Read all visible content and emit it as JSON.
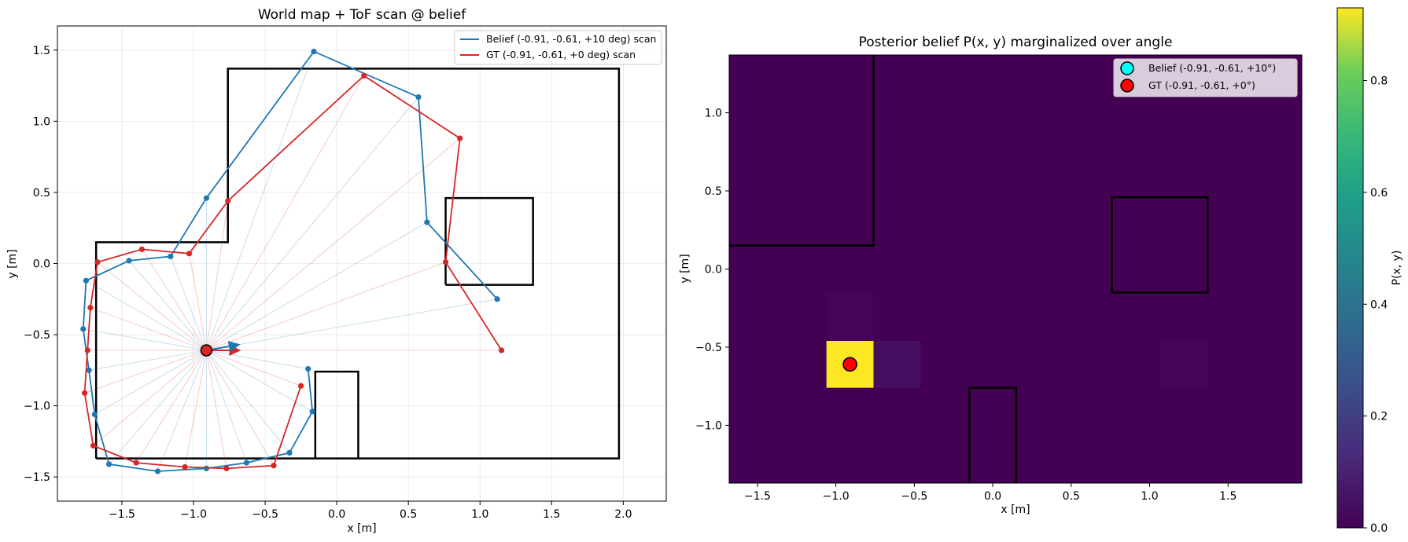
{
  "figure": {
    "background": "#ffffff"
  },
  "colors": {
    "belief": "#1f77b4",
    "gt": "#d62728",
    "wall": "#000000",
    "cyan": "#00ffff",
    "red": "#ff0000"
  },
  "chart_data": [
    {
      "type": "line",
      "title": "World map + ToF scan @ belief",
      "xlabel": "x [m]",
      "ylabel": "y [m]",
      "xlim": [
        -1.95,
        2.3
      ],
      "ylim": [
        -1.67,
        1.67
      ],
      "xticks": [
        -1.5,
        -1.0,
        -0.5,
        0.0,
        0.5,
        1.0,
        1.5,
        2.0
      ],
      "xtick_labels": [
        "−1.5",
        "−1.0",
        "−0.5",
        "0.0",
        "0.5",
        "1.0",
        "1.5",
        "2.0"
      ],
      "yticks": [
        -1.5,
        -1.0,
        -0.5,
        0.0,
        0.5,
        1.0,
        1.5
      ],
      "ytick_labels": [
        "−1.5",
        "−1.0",
        "−0.5",
        "0.0",
        "0.5",
        "1.0",
        "1.5"
      ],
      "grid": true,
      "legend_position": "top-right",
      "walls": [
        {
          "name": "outer-wall",
          "points": [
            [
              -1.68,
              -1.37
            ],
            [
              1.97,
              -1.37
            ],
            [
              1.97,
              1.37
            ],
            [
              -0.76,
              1.37
            ],
            [
              -0.76,
              0.15
            ],
            [
              -1.68,
              0.15
            ],
            [
              -1.68,
              -1.37
            ]
          ]
        },
        {
          "name": "box-obstacle",
          "points": [
            [
              0.76,
              -0.15
            ],
            [
              1.37,
              -0.15
            ],
            [
              1.37,
              0.46
            ],
            [
              0.76,
              0.46
            ],
            [
              0.76,
              -0.15
            ]
          ]
        },
        {
          "name": "pillar-obstacle",
          "points": [
            [
              -0.15,
              -1.37
            ],
            [
              -0.15,
              -0.76
            ],
            [
              0.15,
              -0.76
            ],
            [
              0.15,
              -1.37
            ]
          ]
        }
      ],
      "origin": [
        -0.91,
        -0.61
      ],
      "series": [
        {
          "name": "Belief (-0.91, -0.61, +10 deg) scan",
          "color": "#1f77b4",
          "heading_deg": 10,
          "points": [
            [
              1.12,
              -0.25
            ],
            [
              0.63,
              0.29
            ],
            [
              0.57,
              1.17
            ],
            [
              -0.16,
              1.49
            ],
            [
              -0.91,
              0.46
            ],
            [
              -1.16,
              0.05
            ],
            [
              -1.45,
              0.02
            ],
            [
              -1.75,
              -0.12
            ],
            [
              -1.77,
              -0.46
            ],
            [
              -1.73,
              -0.75
            ],
            [
              -1.69,
              -1.06
            ],
            [
              -1.59,
              -1.41
            ],
            [
              -1.25,
              -1.46
            ],
            [
              -0.91,
              -1.44
            ],
            [
              -0.63,
              -1.4
            ],
            [
              -0.33,
              -1.33
            ],
            [
              -0.17,
              -1.04
            ],
            [
              -0.2,
              -0.74
            ]
          ]
        },
        {
          "name": "GT (-0.91, -0.61, +0 deg) scan",
          "color": "#d62728",
          "heading_deg": 0,
          "points": [
            [
              1.15,
              -0.61
            ],
            [
              0.76,
              0.01
            ],
            [
              0.86,
              0.88
            ],
            [
              0.19,
              1.32
            ],
            [
              -0.76,
              0.44
            ],
            [
              -1.03,
              0.07
            ],
            [
              -1.36,
              0.1
            ],
            [
              -1.67,
              0.01
            ],
            [
              -1.72,
              -0.31
            ],
            [
              -1.74,
              -0.61
            ],
            [
              -1.76,
              -0.91
            ],
            [
              -1.7,
              -1.28
            ],
            [
              -1.4,
              -1.4
            ],
            [
              -1.06,
              -1.43
            ],
            [
              -0.77,
              -1.44
            ],
            [
              -0.44,
              -1.42
            ],
            [
              -0.25,
              -0.86
            ]
          ]
        }
      ]
    },
    {
      "type": "heatmap",
      "title": "Posterior belief P(x, y) marginalized over angle",
      "xlabel": "x [m]",
      "ylabel": "y [m]",
      "xlim": [
        -1.68,
        1.97
      ],
      "ylim": [
        -1.37,
        1.37
      ],
      "xticks": [
        -1.5,
        -1.0,
        -0.5,
        0.0,
        0.5,
        1.0,
        1.5
      ],
      "xtick_labels": [
        "−1.5",
        "−1.0",
        "−0.5",
        "0.0",
        "0.5",
        "1.0",
        "1.5"
      ],
      "yticks": [
        -1.0,
        -0.5,
        0.0,
        0.5,
        1.0
      ],
      "ytick_labels": [
        "−1.0",
        "−0.5",
        "0.0",
        "0.5",
        "1.0"
      ],
      "legend_position": "top-right",
      "colormap": "viridis",
      "vmin": 0.0,
      "vmax": 0.93,
      "colorbar_label": "P(x, y)",
      "colorbar_ticks": [
        0.0,
        0.2,
        0.4,
        0.6,
        0.8
      ],
      "cells": [
        {
          "x0": -1.06,
          "x1": -0.76,
          "y0": -0.76,
          "y1": -0.46,
          "p": 0.93
        },
        {
          "x0": -0.76,
          "x1": -0.46,
          "y0": -0.76,
          "y1": -0.46,
          "p": 0.04
        },
        {
          "x0": -1.06,
          "x1": -0.76,
          "y0": -0.46,
          "y1": -0.15,
          "p": 0.01
        },
        {
          "x0": 1.06,
          "x1": 1.37,
          "y0": -0.76,
          "y1": -0.46,
          "p": 0.01
        }
      ],
      "walls": [
        {
          "name": "upper-left-wall",
          "points": [
            [
              -1.68,
              0.15
            ],
            [
              -0.76,
              0.15
            ],
            [
              -0.76,
              1.37
            ]
          ]
        },
        {
          "name": "box-obstacle",
          "points": [
            [
              0.76,
              -0.15
            ],
            [
              1.37,
              -0.15
            ],
            [
              1.37,
              0.46
            ],
            [
              0.76,
              0.46
            ],
            [
              0.76,
              -0.15
            ]
          ]
        },
        {
          "name": "pillar-obstacle",
          "points": [
            [
              -0.15,
              -1.37
            ],
            [
              -0.15,
              -0.76
            ],
            [
              0.15,
              -0.76
            ],
            [
              0.15,
              -1.37
            ]
          ]
        }
      ],
      "markers": [
        {
          "name": "Belief (-0.91, -0.61, +10°)",
          "x": -0.91,
          "y": -0.61,
          "color": "#00ffff"
        },
        {
          "name": "GT (-0.91, -0.61, +0°)",
          "x": -0.91,
          "y": -0.61,
          "color": "#ff0000"
        }
      ]
    }
  ]
}
